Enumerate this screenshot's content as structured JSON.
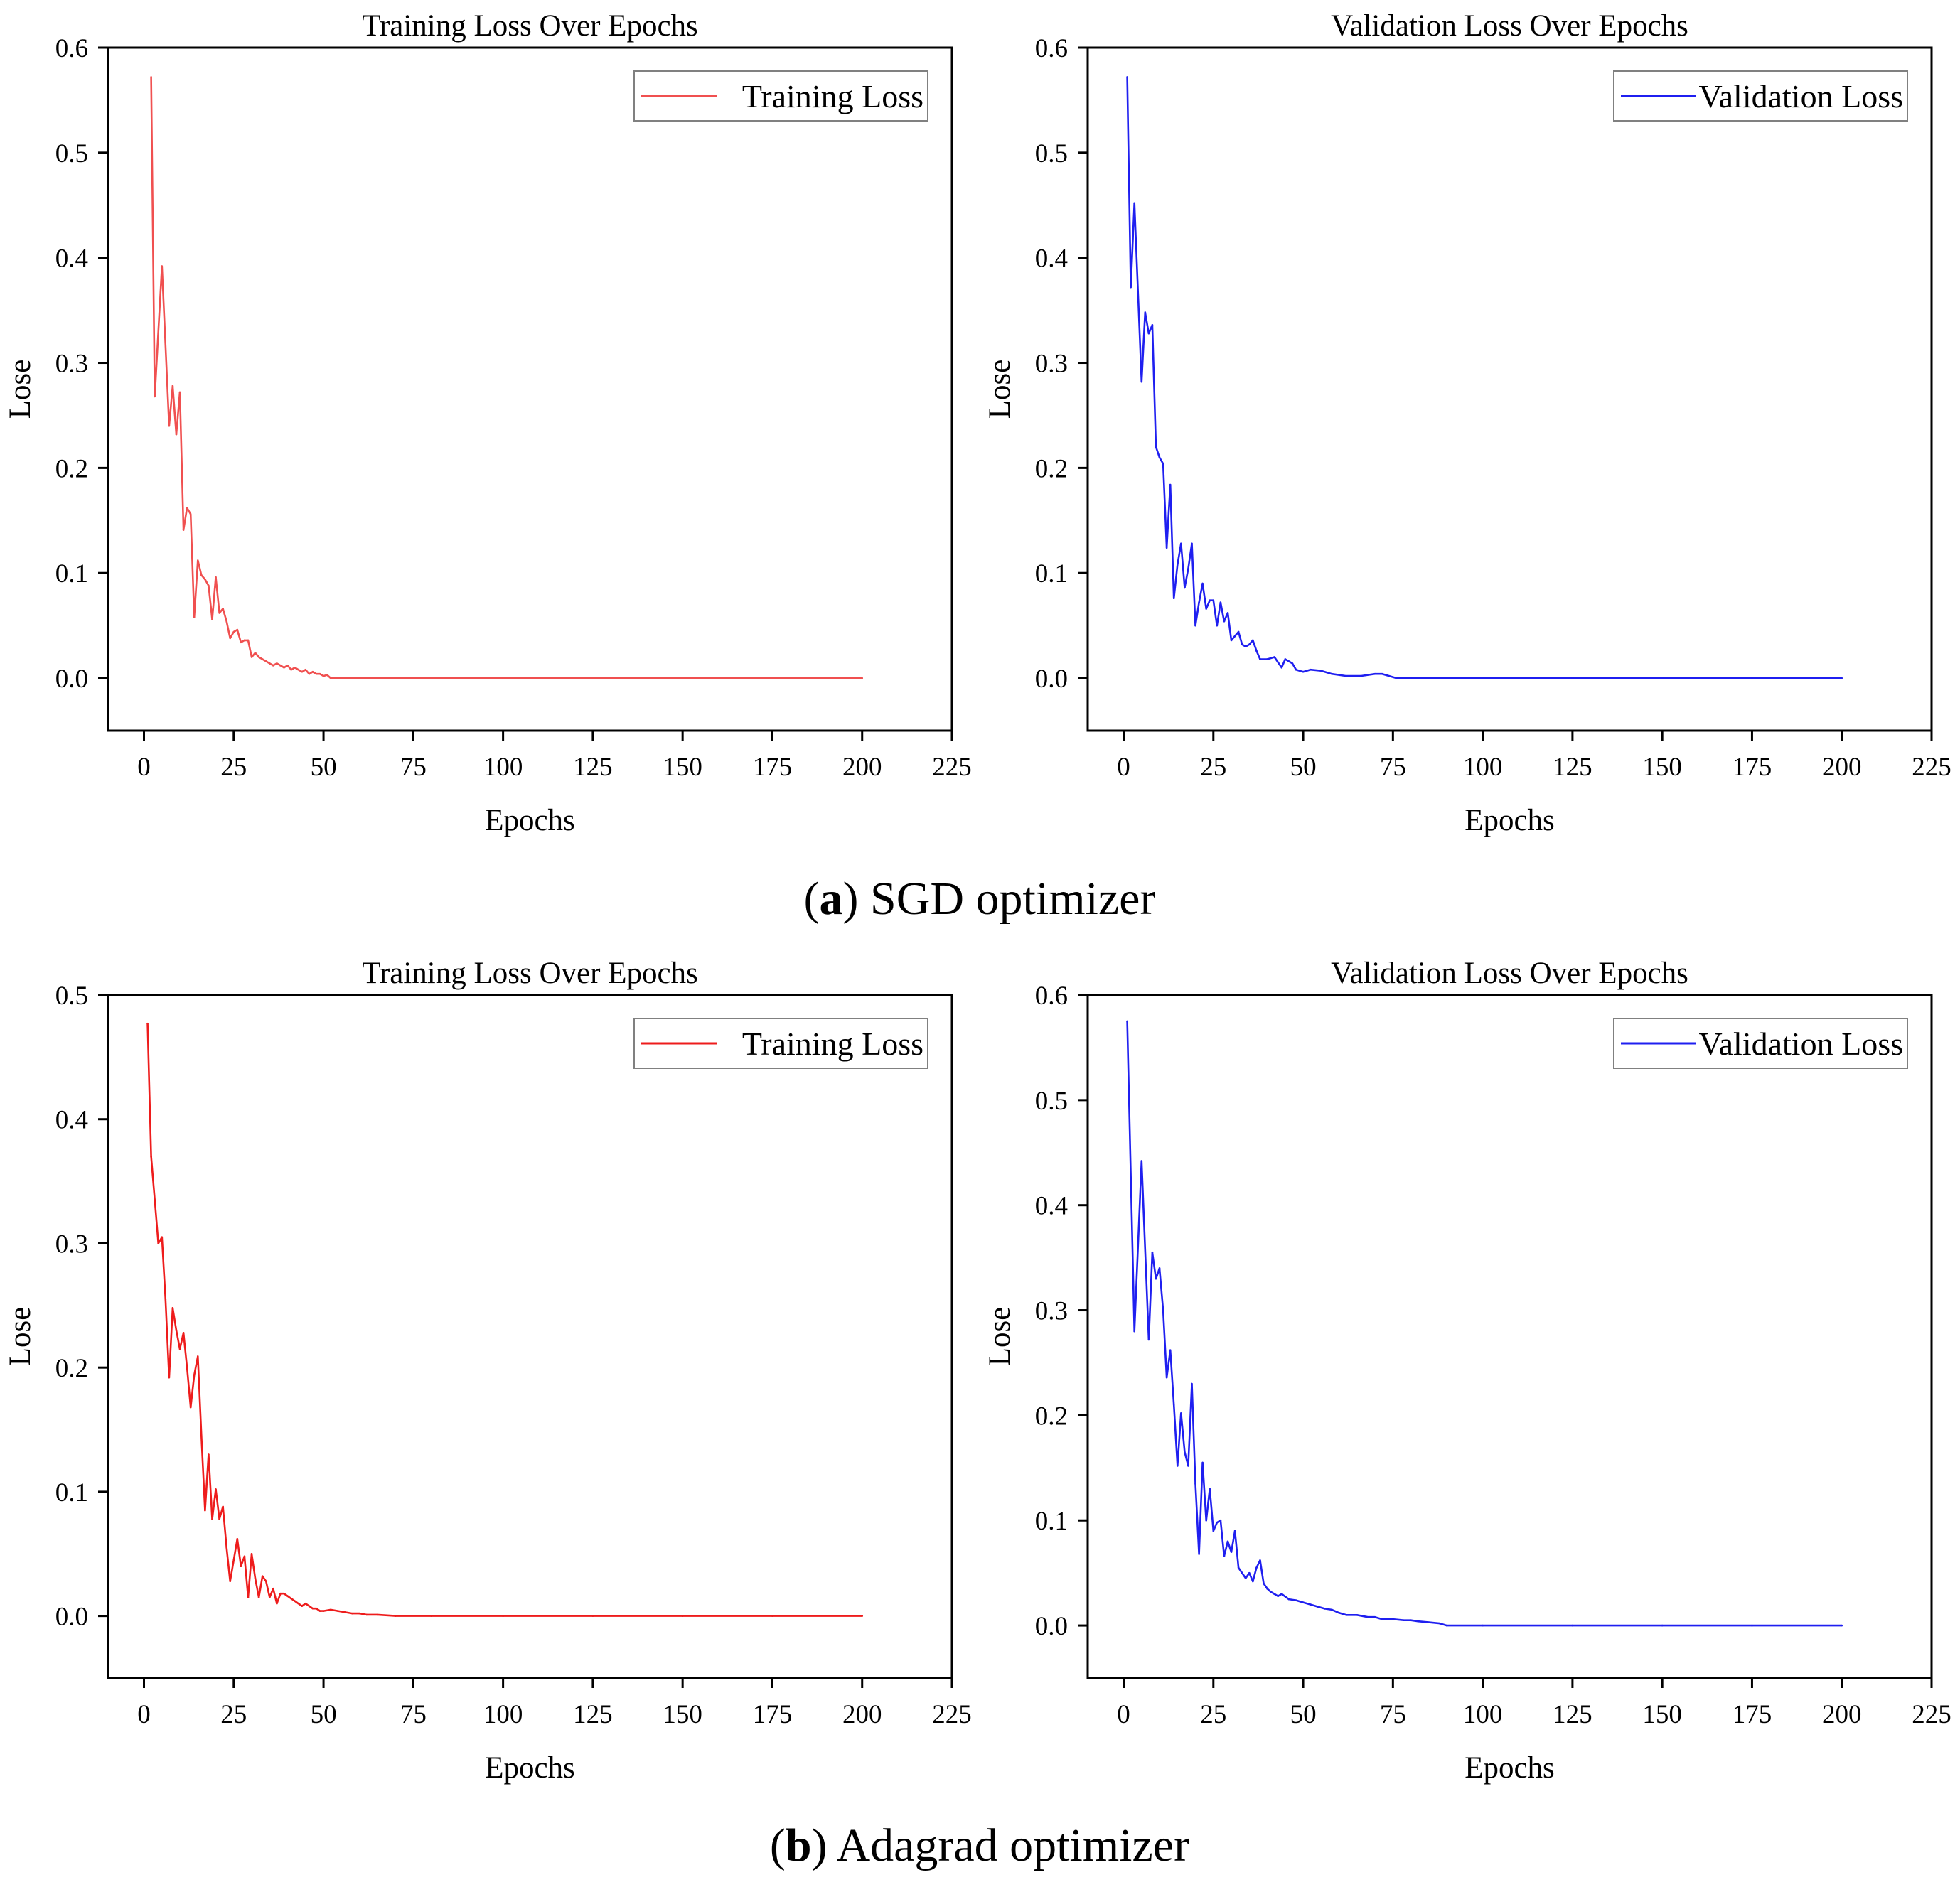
{
  "captions": [
    {
      "letter": "a",
      "text": "SGD optimizer"
    },
    {
      "letter": "b",
      "text": "Adagrad optimizer"
    }
  ],
  "colors": {
    "training": "#f05050",
    "training_b": "#ee1c1c",
    "validation": "#1f1ff0",
    "axis": "#000000"
  },
  "chart_data": [
    {
      "type": "line",
      "panel": "a-training",
      "title": "Training Loss Over Epochs",
      "xlabel": "Epochs",
      "ylabel": "Lose",
      "xlim": [
        -10,
        225
      ],
      "ylim": [
        -0.05,
        0.6
      ],
      "xticks": [
        0,
        25,
        50,
        75,
        100,
        125,
        150,
        175,
        200,
        225
      ],
      "yticks": [
        0.0,
        0.1,
        0.2,
        0.3,
        0.4,
        0.5,
        0.6
      ],
      "ytick_labels": [
        "0.0",
        "0.1",
        "0.2",
        "0.3",
        "0.4",
        "0.5",
        "0.6"
      ],
      "legend_position": "top-right",
      "series": [
        {
          "name": "Training Loss",
          "color_key": "training",
          "x": [
            2,
            3,
            5,
            7,
            8,
            9,
            10,
            11,
            12,
            13,
            14,
            15,
            16,
            17,
            18,
            19,
            20,
            21,
            22,
            23,
            24,
            25,
            26,
            27,
            28,
            29,
            30,
            31,
            32,
            33,
            34,
            35,
            36,
            37,
            38,
            39,
            40,
            41,
            42,
            43,
            44,
            45,
            46,
            47,
            48,
            49,
            50,
            51,
            52,
            60,
            80,
            100,
            125,
            150,
            175,
            200
          ],
          "y": [
            0.572,
            0.268,
            0.392,
            0.24,
            0.278,
            0.232,
            0.272,
            0.141,
            0.162,
            0.156,
            0.058,
            0.112,
            0.098,
            0.094,
            0.088,
            0.056,
            0.096,
            0.062,
            0.066,
            0.054,
            0.038,
            0.044,
            0.046,
            0.034,
            0.036,
            0.036,
            0.02,
            0.024,
            0.02,
            0.018,
            0.016,
            0.014,
            0.012,
            0.014,
            0.012,
            0.01,
            0.012,
            0.008,
            0.01,
            0.008,
            0.006,
            0.008,
            0.004,
            0.006,
            0.004,
            0.004,
            0.002,
            0.003,
            0.0,
            0.0,
            0.0,
            0.0,
            0.0,
            0.0,
            0.0,
            0.0
          ]
        }
      ]
    },
    {
      "type": "line",
      "panel": "a-validation",
      "title": "Validation Loss Over Epochs",
      "xlabel": "Epochs",
      "ylabel": "Lose",
      "xlim": [
        -10,
        225
      ],
      "ylim": [
        -0.05,
        0.6
      ],
      "xticks": [
        0,
        25,
        50,
        75,
        100,
        125,
        150,
        175,
        200,
        225
      ],
      "yticks": [
        0.0,
        0.1,
        0.2,
        0.3,
        0.4,
        0.5,
        0.6
      ],
      "ytick_labels": [
        "0.0",
        "0.1",
        "0.2",
        "0.3",
        "0.4",
        "0.5",
        "0.6"
      ],
      "legend_position": "top-right",
      "series": [
        {
          "name": "Validation Loss",
          "color_key": "validation",
          "x": [
            1,
            2,
            3,
            5,
            6,
            7,
            8,
            9,
            10,
            11,
            12,
            13,
            14,
            15,
            16,
            17,
            18,
            19,
            20,
            21,
            22,
            23,
            24,
            25,
            26,
            27,
            28,
            29,
            30,
            31,
            32,
            33,
            34,
            35,
            36,
            37,
            38,
            40,
            42,
            44,
            45,
            46,
            47,
            48,
            50,
            52,
            55,
            58,
            62,
            66,
            70,
            72,
            76,
            80,
            100,
            125,
            150,
            175,
            200
          ],
          "y": [
            0.572,
            0.372,
            0.452,
            0.282,
            0.348,
            0.328,
            0.336,
            0.22,
            0.21,
            0.204,
            0.124,
            0.184,
            0.076,
            0.108,
            0.128,
            0.086,
            0.104,
            0.128,
            0.05,
            0.072,
            0.09,
            0.066,
            0.074,
            0.074,
            0.05,
            0.072,
            0.054,
            0.062,
            0.036,
            0.04,
            0.044,
            0.032,
            0.03,
            0.032,
            0.036,
            0.026,
            0.018,
            0.018,
            0.02,
            0.01,
            0.018,
            0.016,
            0.014,
            0.008,
            0.006,
            0.008,
            0.007,
            0.004,
            0.002,
            0.002,
            0.004,
            0.004,
            0.0,
            0.0,
            0.0,
            0.0,
            0.0,
            0.0,
            0.0
          ]
        }
      ]
    },
    {
      "type": "line",
      "panel": "b-training",
      "title": "Training Loss Over Epochs",
      "xlabel": "Epochs",
      "ylabel": "Lose",
      "xlim": [
        -10,
        225
      ],
      "ylim": [
        -0.05,
        0.5
      ],
      "xticks": [
        0,
        25,
        50,
        75,
        100,
        125,
        150,
        175,
        200,
        225
      ],
      "yticks": [
        0.0,
        0.1,
        0.2,
        0.3,
        0.4,
        0.5
      ],
      "ytick_labels": [
        "0.0",
        "0.1",
        "0.2",
        "0.3",
        "0.4",
        "0.5"
      ],
      "legend_position": "top-right",
      "series": [
        {
          "name": "Training Loss",
          "color_key": "training_b",
          "x": [
            1,
            2,
            3,
            4,
            5,
            6,
            7,
            8,
            9,
            10,
            11,
            12,
            13,
            14,
            15,
            16,
            17,
            18,
            19,
            20,
            21,
            22,
            23,
            24,
            25,
            26,
            27,
            28,
            29,
            30,
            31,
            32,
            33,
            34,
            35,
            36,
            37,
            38,
            39,
            40,
            41,
            42,
            43,
            44,
            45,
            46,
            47,
            48,
            49,
            50,
            52,
            54,
            56,
            58,
            60,
            62,
            65,
            70,
            80,
            100,
            125,
            150,
            175,
            200
          ],
          "y": [
            0.477,
            0.37,
            0.335,
            0.3,
            0.305,
            0.255,
            0.192,
            0.248,
            0.23,
            0.215,
            0.228,
            0.2,
            0.168,
            0.194,
            0.209,
            0.145,
            0.085,
            0.13,
            0.078,
            0.102,
            0.078,
            0.088,
            0.055,
            0.028,
            0.045,
            0.062,
            0.04,
            0.048,
            0.015,
            0.05,
            0.03,
            0.015,
            0.032,
            0.028,
            0.015,
            0.022,
            0.01,
            0.018,
            0.018,
            0.016,
            0.014,
            0.012,
            0.01,
            0.008,
            0.01,
            0.008,
            0.006,
            0.006,
            0.004,
            0.004,
            0.005,
            0.004,
            0.003,
            0.002,
            0.002,
            0.001,
            0.001,
            0.0,
            0.0,
            0.0,
            0.0,
            0.0,
            0.0,
            0.0
          ]
        }
      ]
    },
    {
      "type": "line",
      "panel": "b-validation",
      "title": "Validation Loss Over Epochs",
      "xlabel": "Epochs",
      "ylabel": "Lose",
      "xlim": [
        -10,
        225
      ],
      "ylim": [
        -0.05,
        0.6
      ],
      "xticks": [
        0,
        25,
        50,
        75,
        100,
        125,
        150,
        175,
        200,
        225
      ],
      "yticks": [
        0.0,
        0.1,
        0.2,
        0.3,
        0.4,
        0.5,
        0.6
      ],
      "ytick_labels": [
        "0.0",
        "0.1",
        "0.2",
        "0.3",
        "0.4",
        "0.5",
        "0.6"
      ],
      "legend_position": "top-right",
      "series": [
        {
          "name": "Validation Loss",
          "color_key": "validation",
          "x": [
            1,
            3,
            5,
            7,
            8,
            9,
            10,
            11,
            12,
            13,
            14,
            15,
            16,
            17,
            18,
            19,
            20,
            21,
            22,
            23,
            24,
            25,
            26,
            27,
            28,
            29,
            30,
            31,
            32,
            33,
            34,
            35,
            36,
            37,
            38,
            39,
            40,
            41,
            42,
            43,
            44,
            46,
            48,
            50,
            52,
            54,
            56,
            58,
            60,
            62,
            65,
            68,
            70,
            72,
            75,
            78,
            80,
            82,
            85,
            88,
            90,
            100,
            125,
            150,
            175,
            200
          ],
          "y": [
            0.575,
            0.28,
            0.442,
            0.272,
            0.355,
            0.33,
            0.34,
            0.3,
            0.236,
            0.262,
            0.21,
            0.152,
            0.202,
            0.165,
            0.152,
            0.23,
            0.135,
            0.068,
            0.155,
            0.1,
            0.13,
            0.09,
            0.098,
            0.1,
            0.066,
            0.08,
            0.07,
            0.09,
            0.055,
            0.05,
            0.045,
            0.05,
            0.042,
            0.055,
            0.062,
            0.04,
            0.035,
            0.032,
            0.03,
            0.028,
            0.03,
            0.025,
            0.024,
            0.022,
            0.02,
            0.018,
            0.016,
            0.015,
            0.012,
            0.01,
            0.01,
            0.008,
            0.008,
            0.006,
            0.006,
            0.005,
            0.005,
            0.004,
            0.003,
            0.002,
            0.0,
            0.0,
            0.0,
            0.0,
            0.0,
            0.0
          ]
        }
      ]
    }
  ]
}
